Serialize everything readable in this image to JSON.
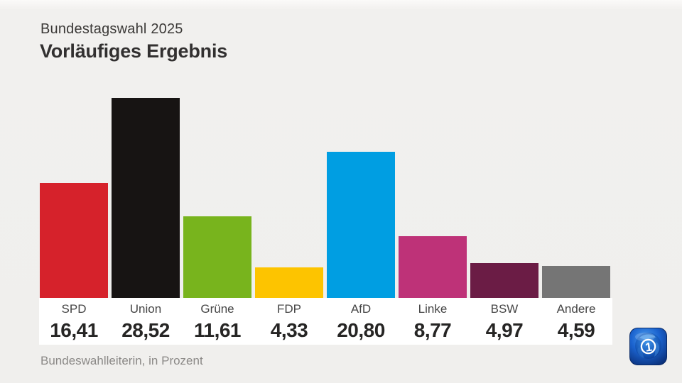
{
  "header": {
    "kicker": "Bundestagswahl 2025",
    "title": "Vorläufiges Ergebnis"
  },
  "footer": {
    "source": "Bundeswahlleiterin, in Prozent"
  },
  "logo": {
    "name": "ARD tagesschau",
    "glyph": "1"
  },
  "colors": {
    "background": "#f0efed",
    "strip": "#ffffff",
    "title_text": "#323030",
    "value_text": "#262524",
    "source_text": "#8b8987"
  },
  "chart_data": {
    "type": "bar",
    "title": "Vorläufiges Ergebnis",
    "subtitle": "Bundestagswahl 2025",
    "source": "Bundeswahlleiterin, in Prozent",
    "unit": "Prozent",
    "categories": [
      "SPD",
      "Union",
      "Grüne",
      "FDP",
      "AfD",
      "Linke",
      "BSW",
      "Andere"
    ],
    "values": [
      16.41,
      28.52,
      11.61,
      4.33,
      20.8,
      8.77,
      4.97,
      4.59
    ],
    "value_labels": [
      "16,41",
      "28,52",
      "11,61",
      "4,33",
      "20,80",
      "8,77",
      "4,97",
      "4,59"
    ],
    "bar_colors": [
      "#d6222b",
      "#171413",
      "#78b41d",
      "#fdc400",
      "#009ee2",
      "#be3278",
      "#6b1c45",
      "#757575"
    ],
    "ylim": [
      0,
      28.52
    ],
    "grid": false,
    "legend": false,
    "axis_labels_hidden": true
  }
}
